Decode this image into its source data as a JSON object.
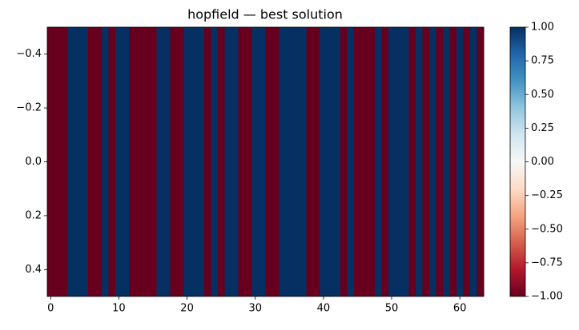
{
  "chart_data": {
    "type": "heatmap",
    "title": "hopfield — best solution",
    "colormap": "RdBu",
    "values": [
      -1,
      -1,
      -1,
      1,
      1,
      1,
      -1,
      -1,
      1,
      -1,
      1,
      1,
      -1,
      -1,
      -1,
      -1,
      1,
      1,
      -1,
      -1,
      1,
      1,
      1,
      -1,
      1,
      -1,
      1,
      1,
      -1,
      -1,
      1,
      1,
      -1,
      -1,
      1,
      1,
      1,
      1,
      -1,
      -1,
      1,
      1,
      1,
      -1,
      1,
      -1,
      -1,
      -1,
      1,
      -1,
      1,
      1,
      1,
      -1,
      1,
      -1,
      1,
      -1,
      1,
      -1,
      1,
      -1,
      1,
      -1
    ],
    "xlim": [
      -0.5,
      63.5
    ],
    "xticks": [
      0,
      10,
      20,
      30,
      40,
      50,
      60
    ],
    "ylim": [
      0.5,
      -0.5
    ],
    "yticks": [
      {
        "value": -0.4,
        "label": "−0.4"
      },
      {
        "value": -0.2,
        "label": "−0.2"
      },
      {
        "value": 0,
        "label": "0.0"
      },
      0.2,
      0.4
    ],
    "clim": [
      -1,
      1
    ],
    "cticks": [
      {
        "value": 1,
        "label": "1.00"
      },
      {
        "value": 0.75,
        "label": "0.75"
      },
      {
        "value": 0.5,
        "label": "0.50"
      },
      {
        "value": 0.25,
        "label": "0.25"
      },
      {
        "value": 0,
        "label": "0.00"
      },
      {
        "value": -0.25,
        "label": "−0.25"
      },
      {
        "value": -0.5,
        "label": "−0.50"
      },
      {
        "value": -0.75,
        "label": "−0.75"
      },
      {
        "value": -1,
        "label": "−1.00"
      }
    ]
  }
}
